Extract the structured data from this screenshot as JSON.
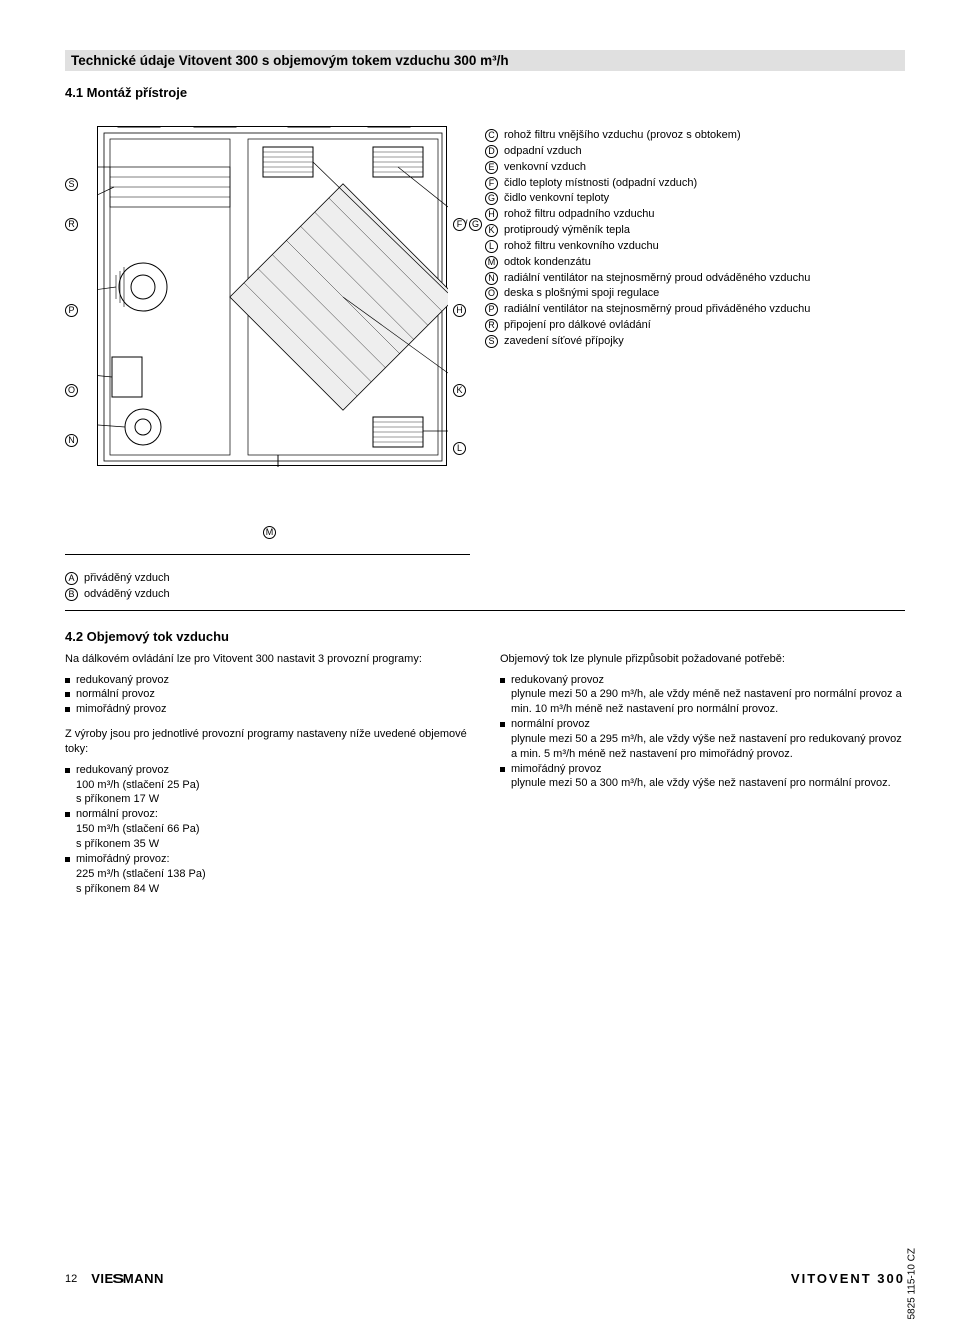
{
  "header": "Technické údaje Vitovent 300 s objemovým tokem vzduchu 300 m³/h",
  "section1": {
    "title": "4.1 Montáž přístroje",
    "labels": {
      "A": "A",
      "B": "B",
      "C": "C",
      "D": "D",
      "E": "E",
      "F": "F",
      "G": "G",
      "H": "H",
      "K": "K",
      "L": "L",
      "M": "M",
      "N": "N",
      "O": "O",
      "P": "P",
      "R": "R",
      "S": "S"
    },
    "legend": [
      {
        "k": "C",
        "t": "rohož filtru vnějšího vzduchu (provoz s obtokem)"
      },
      {
        "k": "D",
        "t": "odpadní vzduch"
      },
      {
        "k": "E",
        "t": "venkovní vzduch"
      },
      {
        "k": "F",
        "t": "čidlo teploty místnosti (odpadní vzduch)"
      },
      {
        "k": "G",
        "t": "čidlo venkovní teploty"
      },
      {
        "k": "H",
        "t": "rohož filtru odpadního vzduchu"
      },
      {
        "k": "K",
        "t": "protiproudý výměník tepla"
      },
      {
        "k": "L",
        "t": "rohož filtru venkovního vzduchu"
      },
      {
        "k": "M",
        "t": "odtok kondenzátu"
      },
      {
        "k": "N",
        "t": "radiální ventilátor na stejnosměrný proud odváděného vzduchu"
      },
      {
        "k": "O",
        "t": "deska s plošnými spoji regulace"
      },
      {
        "k": "P",
        "t": "radiální ventilátor na stejnosměrný proud přiváděného vzduchu"
      },
      {
        "k": "R",
        "t": "připojení pro dálkové ovládání"
      },
      {
        "k": "S",
        "t": "zavedení síťové přípojky"
      }
    ],
    "legend2": [
      {
        "k": "A",
        "t": "přiváděný vzduch"
      },
      {
        "k": "B",
        "t": "odváděný vzduch"
      }
    ]
  },
  "section2": {
    "title": "4.2 Objemový tok vzduchu",
    "left": {
      "intro": "Na dálkovém ovládání lze pro Vitovent 300 nastavit 3 provozní programy:",
      "modes": [
        "redukovaný provoz",
        "normální provoz",
        "mimořádný provoz"
      ],
      "intro2": "Z výroby jsou pro jednotlivé provozní programy nastaveny níže uvedené objemové toky:",
      "presets": [
        {
          "h": "redukovaný provoz",
          "l1": "100 m³/h (stlačení 25 Pa)",
          "l2": "s příkonem 17 W"
        },
        {
          "h": "normální provoz:",
          "l1": "150 m³/h (stlačení 66 Pa)",
          "l2": "s příkonem 35 W"
        },
        {
          "h": "mimořádný provoz:",
          "l1": "225 m³/h (stlačení 138 Pa)",
          "l2": "s příkonem 84 W"
        }
      ]
    },
    "right": {
      "intro": "Objemový tok lze plynule přizpůsobit požadované potřebě:",
      "items": [
        {
          "h": "redukovaný provoz",
          "t": "plynule mezi 50 a 290 m³/h, ale vždy méně než nastavení pro normální provoz a min. 10 m³/h méně než nastavení pro normální provoz."
        },
        {
          "h": "normální provoz",
          "t": "plynule mezi 50 a 295 m³/h, ale vždy výše než nastavení pro redukovaný provoz a min. 5 m³/h méně než nastavení pro mimořádný provoz."
        },
        {
          "h": "mimořádný provoz",
          "t": "plynule mezi 50 a 300 m³/h, ale vždy výše než nastavení pro normální provoz."
        }
      ]
    }
  },
  "footer": {
    "page": "12",
    "brand": "VIESMANN",
    "product": "VITOVENT 300",
    "code": "5825 115-10 CZ"
  }
}
